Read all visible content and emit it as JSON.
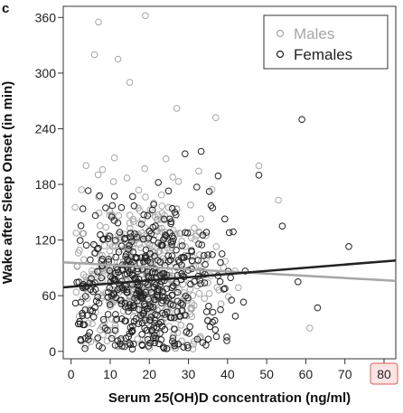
{
  "chart_data": {
    "type": "scatter",
    "panel_letter": "c",
    "xlabel": "Serum 25(OH)D concentration (ng/ml)",
    "ylabel": "Wake after Sleep Onset (in min)",
    "xlim": [
      -2,
      83
    ],
    "ylim": [
      -8,
      372
    ],
    "x_ticks": [
      0,
      10,
      20,
      30,
      40,
      50,
      60,
      70,
      80
    ],
    "y_ticks": [
      0,
      60,
      120,
      180,
      240,
      300,
      360
    ],
    "highlighted_x_tick": 80,
    "grid": false,
    "legend_position": "top-right",
    "series": [
      {
        "name": "Males",
        "color": "#a6a6a6",
        "marker": "open-circle",
        "notable_points": [
          [
            7,
            355
          ],
          [
            19,
            362
          ],
          [
            6,
            320
          ],
          [
            12,
            315
          ],
          [
            15,
            290
          ],
          [
            27,
            262
          ],
          [
            48,
            200
          ],
          [
            53,
            163
          ],
          [
            61,
            25
          ],
          [
            37,
            252
          ]
        ],
        "fit_line": [
          [
            -2,
            96
          ],
          [
            83,
            76
          ]
        ]
      },
      {
        "name": "Females",
        "color": "#222222",
        "marker": "open-circle",
        "notable_points": [
          [
            59,
            250
          ],
          [
            71,
            113
          ],
          [
            63,
            47
          ],
          [
            58,
            75
          ],
          [
            48,
            190
          ],
          [
            54,
            135
          ],
          [
            42,
            38
          ]
        ],
        "fit_line": [
          [
            -2,
            69
          ],
          [
            83,
            98
          ]
        ]
      }
    ]
  }
}
